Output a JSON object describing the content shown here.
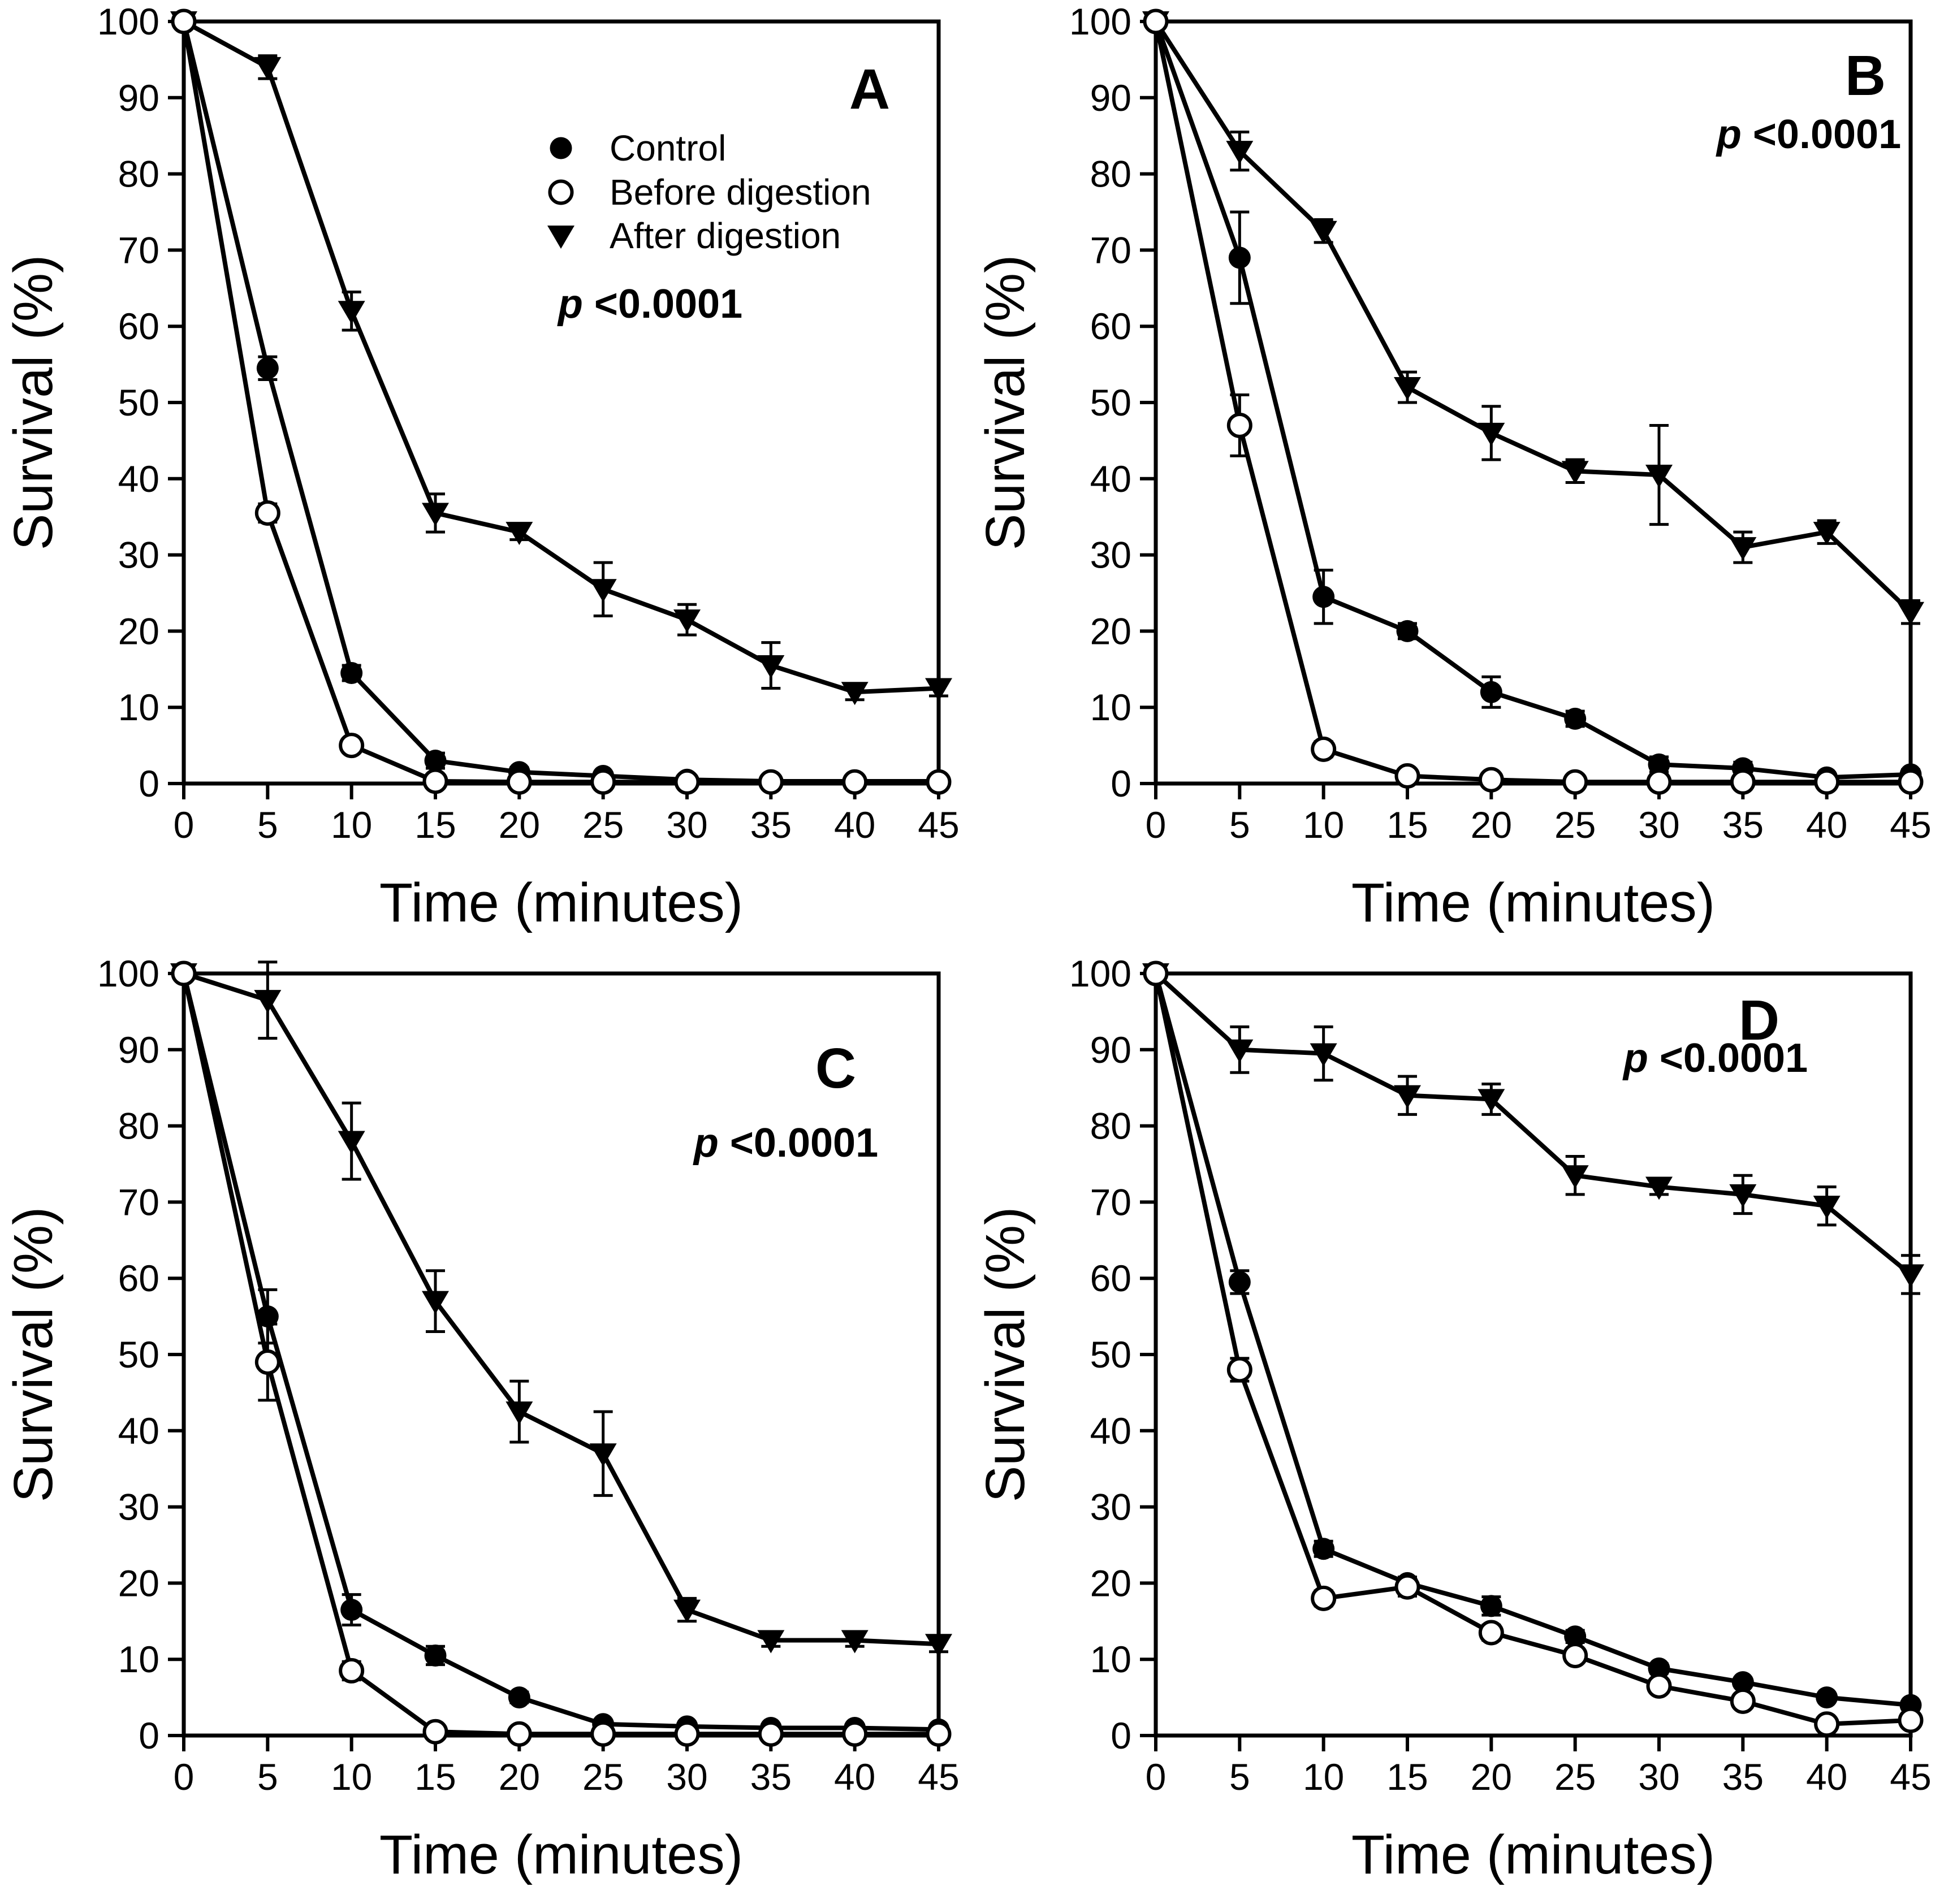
{
  "figure": {
    "background": "#ffffff",
    "ink_color": "#000000",
    "xlabel": "Time (minutes)",
    "ylabel": "Survival (%)",
    "legend": {
      "entries": [
        {
          "label": "Control",
          "marker": "filled-circle"
        },
        {
          "label": "Before digestion",
          "marker": "open-circle"
        },
        {
          "label": "After digestion",
          "marker": "filled-triangle-down"
        }
      ],
      "shown_in_panel": "A"
    }
  },
  "chart_data": [
    {
      "type": "line",
      "panel_label": "A",
      "annotation": "p <0.0001",
      "title": "",
      "xlabel": "Time (minutes)",
      "ylabel": "Survival (%)",
      "xlim": [
        0,
        45
      ],
      "ylim": [
        0,
        100
      ],
      "x": [
        0,
        5,
        10,
        15,
        20,
        25,
        30,
        35,
        40,
        45
      ],
      "xticks": [
        0,
        5,
        10,
        15,
        20,
        25,
        30,
        35,
        40,
        45
      ],
      "yticks": [
        0,
        10,
        20,
        30,
        40,
        50,
        60,
        70,
        80,
        90,
        100
      ],
      "grid": false,
      "legend_visible": true,
      "series": [
        {
          "name": "Control",
          "marker": "filled-circle",
          "values": [
            100,
            54.5,
            14.5,
            3,
            1.5,
            1,
            0.5,
            0.3,
            0.3,
            0.3
          ],
          "errors": [
            0,
            1.5,
            1,
            1,
            0.6,
            0.4,
            0.3,
            0.2,
            0.2,
            0.2
          ]
        },
        {
          "name": "Before digestion",
          "marker": "open-circle",
          "values": [
            100,
            35.5,
            5,
            0.3,
            0.2,
            0.2,
            0.2,
            0.2,
            0.2,
            0.2
          ],
          "errors": [
            0,
            1.2,
            0.8,
            0.3,
            0.2,
            0.2,
            0.2,
            0.2,
            0.2,
            0.2
          ]
        },
        {
          "name": "After digestion",
          "marker": "filled-triangle-down",
          "values": [
            100,
            94,
            62,
            35.5,
            33,
            25.5,
            21.5,
            15.5,
            12,
            12.5
          ],
          "errors": [
            0,
            1.5,
            2.5,
            2.5,
            1,
            3.5,
            2,
            3,
            1,
            1
          ]
        }
      ]
    },
    {
      "type": "line",
      "panel_label": "B",
      "annotation": "p <0.0001",
      "title": "",
      "xlabel": "Time (minutes)",
      "ylabel": "Survival (%)",
      "xlim": [
        0,
        45
      ],
      "ylim": [
        0,
        100
      ],
      "x": [
        0,
        5,
        10,
        15,
        20,
        25,
        30,
        35,
        40,
        45
      ],
      "xticks": [
        0,
        5,
        10,
        15,
        20,
        25,
        30,
        35,
        40,
        45
      ],
      "yticks": [
        0,
        10,
        20,
        30,
        40,
        50,
        60,
        70,
        80,
        90,
        100
      ],
      "grid": false,
      "legend_visible": false,
      "series": [
        {
          "name": "Control",
          "marker": "filled-circle",
          "values": [
            100,
            69,
            24.5,
            20,
            12,
            8.5,
            2.5,
            2,
            0.8,
            1.2
          ],
          "errors": [
            0,
            6,
            3.5,
            1,
            2,
            1,
            1,
            0.8,
            0.4,
            0.6
          ]
        },
        {
          "name": "Before digestion",
          "marker": "open-circle",
          "values": [
            100,
            47,
            4.5,
            1,
            0.5,
            0.2,
            0.2,
            0.2,
            0.2,
            0.2
          ],
          "errors": [
            0,
            4,
            1,
            0.4,
            0.3,
            0.2,
            0.2,
            0.2,
            0.2,
            0.2
          ]
        },
        {
          "name": "After digestion",
          "marker": "filled-triangle-down",
          "values": [
            100,
            83,
            72.5,
            52,
            46,
            41,
            40.5,
            31,
            33,
            22.5
          ],
          "errors": [
            0,
            2.5,
            1.5,
            2,
            3.5,
            1.5,
            6.5,
            2,
            1.5,
            1.5
          ]
        }
      ]
    },
    {
      "type": "line",
      "panel_label": "C",
      "annotation": "p <0.0001",
      "title": "",
      "xlabel": "Time (minutes)",
      "ylabel": "Survival (%)",
      "xlim": [
        0,
        45
      ],
      "ylim": [
        0,
        100
      ],
      "x": [
        0,
        5,
        10,
        15,
        20,
        25,
        30,
        35,
        40,
        45
      ],
      "xticks": [
        0,
        5,
        10,
        15,
        20,
        25,
        30,
        35,
        40,
        45
      ],
      "yticks": [
        0,
        10,
        20,
        30,
        40,
        50,
        60,
        70,
        80,
        90,
        100
      ],
      "grid": false,
      "legend_visible": false,
      "series": [
        {
          "name": "Control",
          "marker": "filled-circle",
          "values": [
            100,
            55,
            16.5,
            10.5,
            5,
            1.5,
            1.2,
            1,
            1,
            0.8
          ],
          "errors": [
            0,
            3.5,
            2,
            1.2,
            0.7,
            0.5,
            0.4,
            0.3,
            0.3,
            0.3
          ]
        },
        {
          "name": "Before digestion",
          "marker": "open-circle",
          "values": [
            100,
            49,
            8.5,
            0.5,
            0.2,
            0.2,
            0.2,
            0.2,
            0.2,
            0.2
          ],
          "errors": [
            0,
            5,
            1.2,
            0.4,
            0.2,
            0.2,
            0.2,
            0.2,
            0.2,
            0.2
          ]
        },
        {
          "name": "After digestion",
          "marker": "filled-triangle-down",
          "values": [
            100,
            96.5,
            78,
            57,
            42.5,
            37,
            16.5,
            12.5,
            12.5,
            12
          ],
          "errors": [
            0,
            5,
            5,
            4,
            4,
            5.5,
            1.5,
            0.8,
            0.8,
            1
          ]
        }
      ]
    },
    {
      "type": "line",
      "panel_label": "D",
      "annotation": "p <0.0001",
      "title": "",
      "xlabel": "Time (minutes)",
      "ylabel": "Survival (%)",
      "xlim": [
        0,
        45
      ],
      "ylim": [
        0,
        100
      ],
      "x": [
        0,
        5,
        10,
        15,
        20,
        25,
        30,
        35,
        40,
        45
      ],
      "xticks": [
        0,
        5,
        10,
        15,
        20,
        25,
        30,
        35,
        40,
        45
      ],
      "yticks": [
        0,
        10,
        20,
        30,
        40,
        50,
        60,
        70,
        80,
        90,
        100
      ],
      "grid": false,
      "legend_visible": false,
      "series": [
        {
          "name": "Control",
          "marker": "filled-circle",
          "values": [
            100,
            59.5,
            24.5,
            20,
            17,
            13,
            8.8,
            7,
            5,
            4
          ],
          "errors": [
            0,
            1.5,
            1,
            0.8,
            1.2,
            0.8,
            0.6,
            0.5,
            0.5,
            0.5
          ]
        },
        {
          "name": "Before digestion",
          "marker": "open-circle",
          "values": [
            100,
            48,
            18,
            19.5,
            13.5,
            10.5,
            6.5,
            4.5,
            1.5,
            2
          ],
          "errors": [
            0,
            1.5,
            1,
            1.2,
            1,
            0.8,
            0.8,
            0.6,
            0.5,
            0.5
          ]
        },
        {
          "name": "After digestion",
          "marker": "filled-triangle-down",
          "values": [
            100,
            90,
            89.5,
            84,
            83.5,
            73.5,
            72,
            71,
            69.5,
            60.5
          ],
          "errors": [
            0,
            3,
            3.5,
            2.5,
            2,
            2.5,
            1,
            2.5,
            2.5,
            2.5
          ]
        }
      ]
    }
  ]
}
